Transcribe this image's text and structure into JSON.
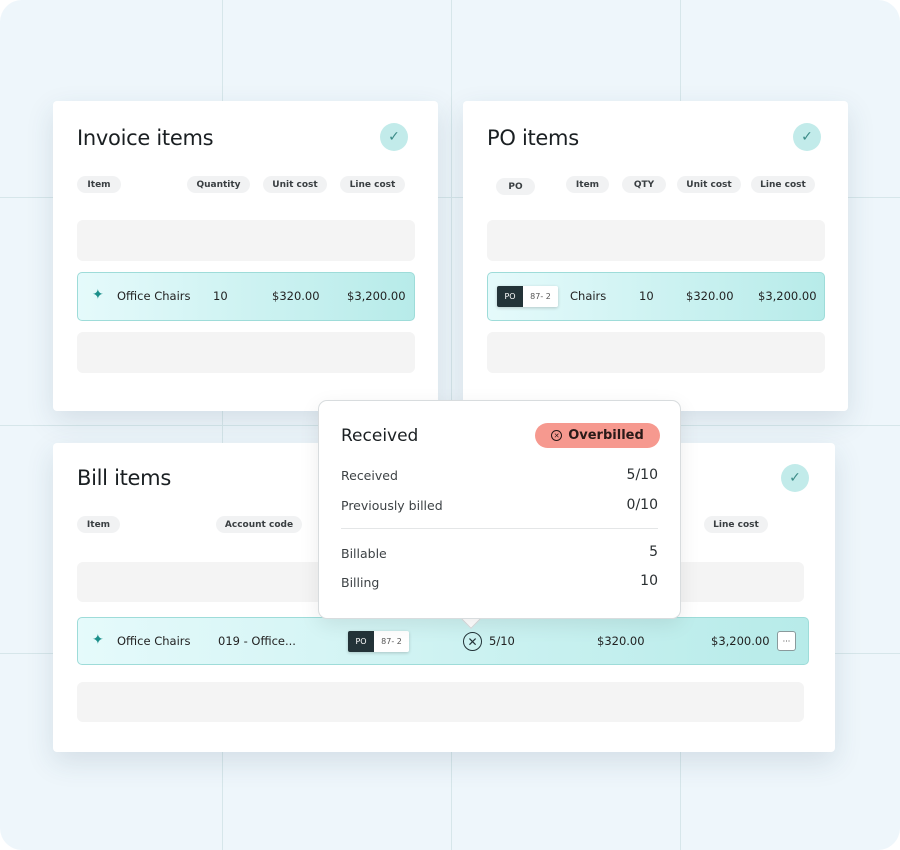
{
  "invoice": {
    "title": "Invoice items",
    "columns": [
      "Item",
      "Quantity",
      "Unit cost",
      "Line cost"
    ],
    "row": {
      "item": "Office Chairs",
      "quantity": "10",
      "unit_cost": "$320.00",
      "line_cost": "$3,200.00"
    }
  },
  "po": {
    "title": "PO items",
    "columns": [
      "PO",
      "Item",
      "QTY",
      "Unit cost",
      "Line cost"
    ],
    "row": {
      "po_label": "PO",
      "po_number": "87- 2",
      "item": "Chairs",
      "qty": "10",
      "unit_cost": "$320.00",
      "line_cost": "$3,200.00"
    }
  },
  "bill": {
    "title": "Bill items",
    "columns": [
      "Item",
      "Account code",
      "Line cost"
    ],
    "row": {
      "item": "Office Chairs",
      "account_code": "019 - Office...",
      "po_label": "PO",
      "po_number": "87- 2",
      "received": "5/10",
      "unit_cost": "$320.00",
      "line_cost": "$3,200.00",
      "more": "···"
    }
  },
  "popup": {
    "title": "Received",
    "badge": "Overbilled",
    "badge_color": "#f6998f",
    "rows": [
      {
        "label": "Received",
        "value": "5/10"
      },
      {
        "label": "Previously billed",
        "value": "0/10"
      },
      {
        "label": "Billable",
        "value": "5"
      },
      {
        "label": "Billing",
        "value": "10"
      }
    ]
  },
  "colors": {
    "accent": "#1b8f8a",
    "highlight": "#c2ebea"
  },
  "icons": {
    "check": "check-icon",
    "sparkle": "sparkle-icon",
    "error": "x-circle-icon",
    "more": "ellipsis-icon"
  }
}
